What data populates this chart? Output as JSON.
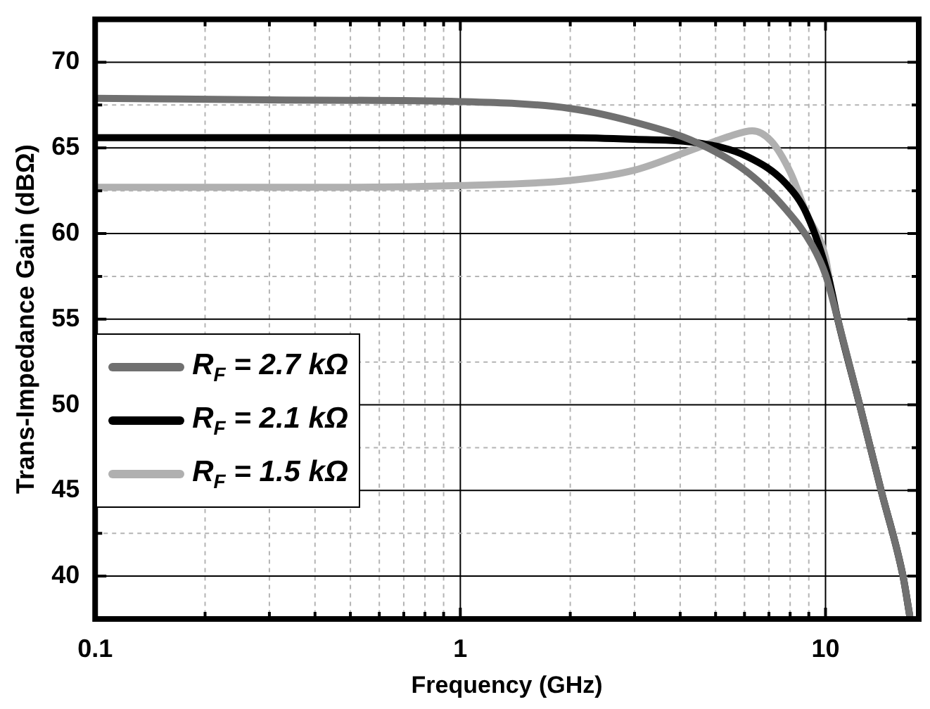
{
  "chart_data": {
    "type": "line",
    "xlabel": "Frequency (GHz)",
    "ylabel": "Trans-Impedance Gain (dBΩ)",
    "log": "x",
    "xlim": [
      0.1,
      18
    ],
    "ylim": [
      37.5,
      72.5
    ],
    "xticks": [
      0.1,
      {
        "value": 0.2,
        "label": null
      },
      {
        "value": 0.3,
        "label": null
      },
      {
        "value": 0.4,
        "label": null
      },
      {
        "value": 0.5,
        "label": null
      },
      {
        "value": 0.6,
        "label": null
      },
      {
        "value": 0.7,
        "label": null
      },
      {
        "value": 0.8,
        "label": null
      },
      {
        "value": 0.9,
        "label": null
      },
      1,
      {
        "value": 2,
        "label": null
      },
      {
        "value": 3,
        "label": null
      },
      {
        "value": 4,
        "label": null
      },
      {
        "value": 5,
        "label": null
      },
      {
        "value": 6,
        "label": null
      },
      {
        "value": 7,
        "label": null
      },
      {
        "value": 8,
        "label": null
      },
      {
        "value": 9,
        "label": null
      },
      10
    ],
    "yticks": [
      40,
      {
        "value": 42.5,
        "label": null
      },
      45,
      {
        "value": 47.5,
        "label": null
      },
      50,
      {
        "value": 52.5,
        "label": null
      },
      55,
      {
        "value": 57.5,
        "label": null
      },
      60,
      {
        "value": 62.5,
        "label": null
      },
      65,
      {
        "value": 67.5,
        "label": null
      },
      70
    ],
    "grid": true,
    "legend": "left",
    "line_style": "solid",
    "marker": "none",
    "series": [
      {
        "name": "R$_{F}$ = 2.7 kΩ",
        "color": "#707070",
        "x": [
          0.1,
          0.3,
          1,
          2,
          3,
          4.45,
          6.1,
          7.8,
          9.2,
          10,
          10.8,
          12.4,
          14.2,
          16.3,
          17
        ],
        "values": [
          67.9,
          67.8,
          67.7,
          67.3,
          66.5,
          65.3,
          63.6,
          61.4,
          59.3,
          57.6,
          55,
          50,
          45,
          40,
          37.7
        ]
      },
      {
        "name": "R$_{F}$ = 2.1 kΩ",
        "color": "#000000",
        "x": [
          0.1,
          1,
          2,
          3,
          4.45,
          6.1,
          7.8,
          8.9,
          10.2,
          10.8,
          12.4,
          14.2,
          16.3,
          17
        ],
        "values": [
          65.6,
          65.6,
          65.6,
          65.5,
          65.3,
          64.5,
          62.9,
          61.1,
          57.4,
          55,
          50,
          45,
          40,
          37.7
        ]
      },
      {
        "name": "R$_{F}$ = 1.5 kΩ",
        "color": "#b0b0b0",
        "x": [
          0.1,
          0.5,
          1,
          2,
          3,
          4.45,
          5.5,
          6.3,
          7.1,
          8,
          8.9,
          10,
          10.3
        ],
        "values": [
          62.7,
          62.7,
          62.8,
          63.1,
          63.7,
          65,
          65.7,
          66,
          65.4,
          63.6,
          61.1,
          58.6,
          57
        ]
      }
    ]
  }
}
